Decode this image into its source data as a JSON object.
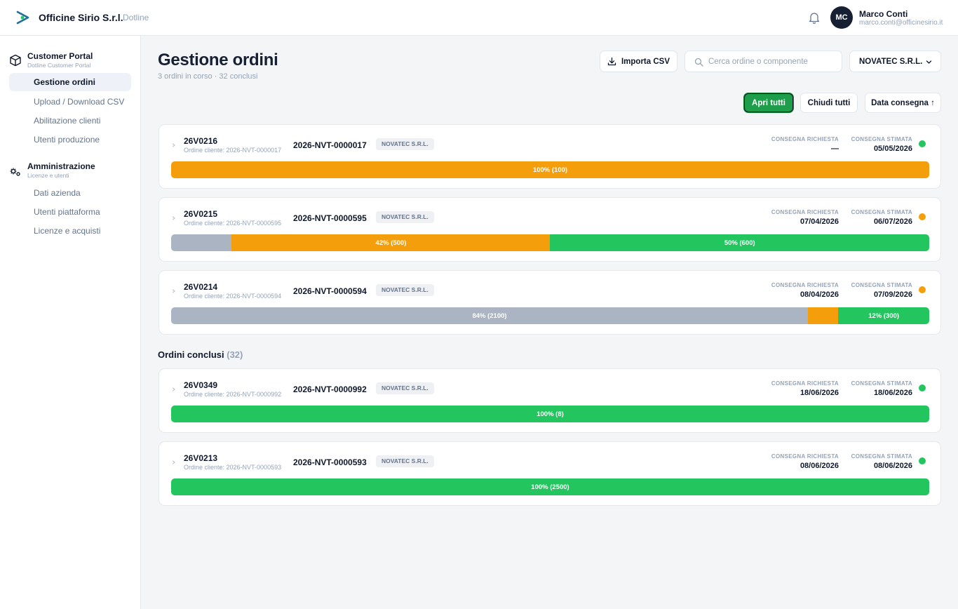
{
  "app": {
    "company": "Officine Sirio S.r.l.",
    "product": "Dotline"
  },
  "user": {
    "initials": "MC",
    "name": "Marco Conti",
    "email": "marco.conti@officinesirio.it"
  },
  "sidebar": {
    "sections": [
      {
        "title": "Customer Portal",
        "subtitle": "Dotline Customer Portal",
        "icon": "cube-icon",
        "items": [
          {
            "label": "Gestione ordini",
            "active": true
          },
          {
            "label": "Upload / Download CSV"
          },
          {
            "label": "Abilitazione clienti"
          },
          {
            "label": "Utenti produzione"
          }
        ]
      },
      {
        "title": "Amministrazione",
        "subtitle": "Licenze e utenti",
        "icon": "gears-icon",
        "items": [
          {
            "label": "Dati azienda"
          },
          {
            "label": "Utenti piattaforma"
          },
          {
            "label": "Licenze e acquisti"
          }
        ]
      }
    ]
  },
  "header": {
    "title": "Gestione ordini",
    "subtitle": "3 ordini in corso · 32 conclusi",
    "import_label": "Importa CSV",
    "search_placeholder": "Cerca ordine o componente",
    "client_select": "NOVATEC S.R.L.",
    "open_all": "Apri tutti",
    "close_all": "Chiudi tutti",
    "sort_label": "Data consegna ↑"
  },
  "labels": {
    "requested": "CONSEGNA RICHIESTA",
    "estimated": "CONSEGNA STIMATA"
  },
  "colors": {
    "orange": "#f59e0b",
    "green": "#22c55e",
    "gray": "#aab4c3"
  },
  "orders_active": [
    {
      "id": "26V0216",
      "client_ref": "Ordine cliente: 2026-NVT-0000017",
      "code": "2026-NVT-0000017",
      "client": "NOVATEC S.R.L.",
      "requested": "—",
      "estimated": "05/05/2026",
      "status": "green",
      "segments": [
        {
          "value": 100,
          "color": "orange",
          "label": "100% (100)"
        }
      ]
    },
    {
      "id": "26V0215",
      "client_ref": "Ordine cliente: 2026-NVT-0000595",
      "code": "2026-NVT-0000595",
      "client": "NOVATEC S.R.L.",
      "requested": "07/04/2026",
      "estimated": "06/07/2026",
      "status": "orange",
      "segments": [
        {
          "value": 8,
          "color": "gray",
          "label": ""
        },
        {
          "value": 42,
          "color": "orange",
          "label": "42% (500)"
        },
        {
          "value": 50,
          "color": "green",
          "label": "50% (600)"
        }
      ]
    },
    {
      "id": "26V0214",
      "client_ref": "Ordine cliente: 2026-NVT-0000594",
      "code": "2026-NVT-0000594",
      "client": "NOVATEC S.R.L.",
      "requested": "08/04/2026",
      "estimated": "07/09/2026",
      "status": "orange",
      "segments": [
        {
          "value": 84,
          "color": "gray",
          "label": "84% (2100)"
        },
        {
          "value": 4,
          "color": "orange",
          "label": ""
        },
        {
          "value": 12,
          "color": "green",
          "label": "12% (300)"
        }
      ]
    }
  ],
  "completed": {
    "title": "Ordini conclusi",
    "count": "(32)",
    "orders": [
      {
        "id": "26V0349",
        "client_ref": "Ordine cliente: 2026-NVT-0000992",
        "code": "2026-NVT-0000992",
        "client": "NOVATEC S.R.L.",
        "requested": "18/06/2026",
        "estimated": "18/06/2026",
        "status": "green",
        "segments": [
          {
            "value": 100,
            "color": "green",
            "label": "100% (8)"
          }
        ]
      },
      {
        "id": "26V0213",
        "client_ref": "Ordine cliente: 2026-NVT-0000593",
        "code": "2026-NVT-0000593",
        "client": "NOVATEC S.R.L.",
        "requested": "08/06/2026",
        "estimated": "08/06/2026",
        "status": "green",
        "segments": [
          {
            "value": 100,
            "color": "green",
            "label": "100% (2500)"
          }
        ]
      }
    ]
  }
}
